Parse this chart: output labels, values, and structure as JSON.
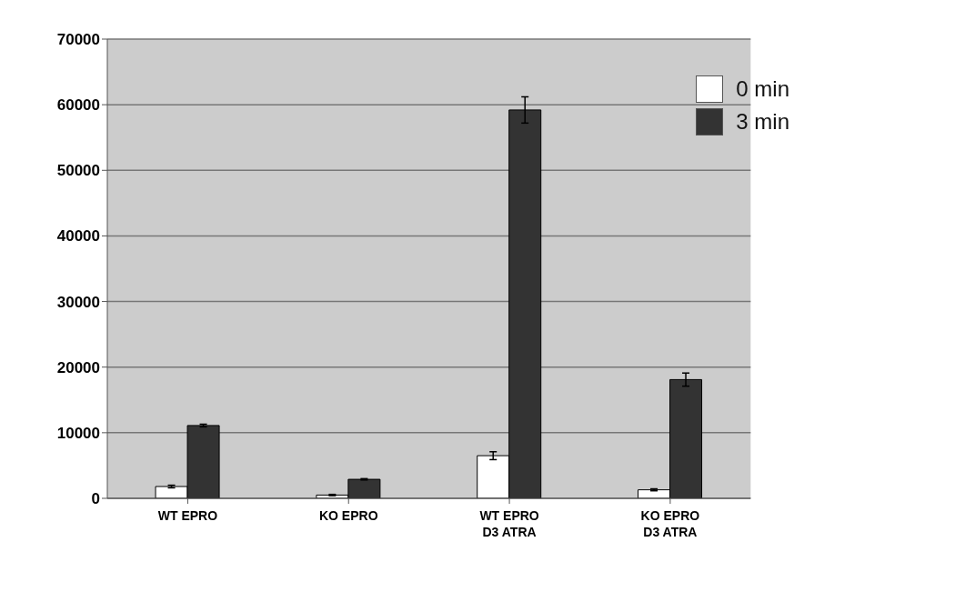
{
  "chart_data": {
    "type": "bar",
    "categories": [
      "WT EPRO",
      "KO EPRO",
      "WT EPRO\nD3 ATRA",
      "KO EPRO\nD3 ATRA"
    ],
    "series": [
      {
        "name": "0 min",
        "color": "#ffffff",
        "values": [
          1800,
          500,
          6500,
          1300
        ],
        "errors": [
          200,
          100,
          600,
          150
        ]
      },
      {
        "name": "3 min",
        "color": "#333333",
        "values": [
          11100,
          2900,
          59200,
          18100
        ],
        "errors": [
          200,
          100,
          2000,
          1000
        ]
      }
    ],
    "ylim": [
      0,
      70000
    ],
    "yticks": [
      0,
      10000,
      20000,
      30000,
      40000,
      50000,
      60000,
      70000
    ],
    "grid": "y",
    "legend": "top right"
  }
}
